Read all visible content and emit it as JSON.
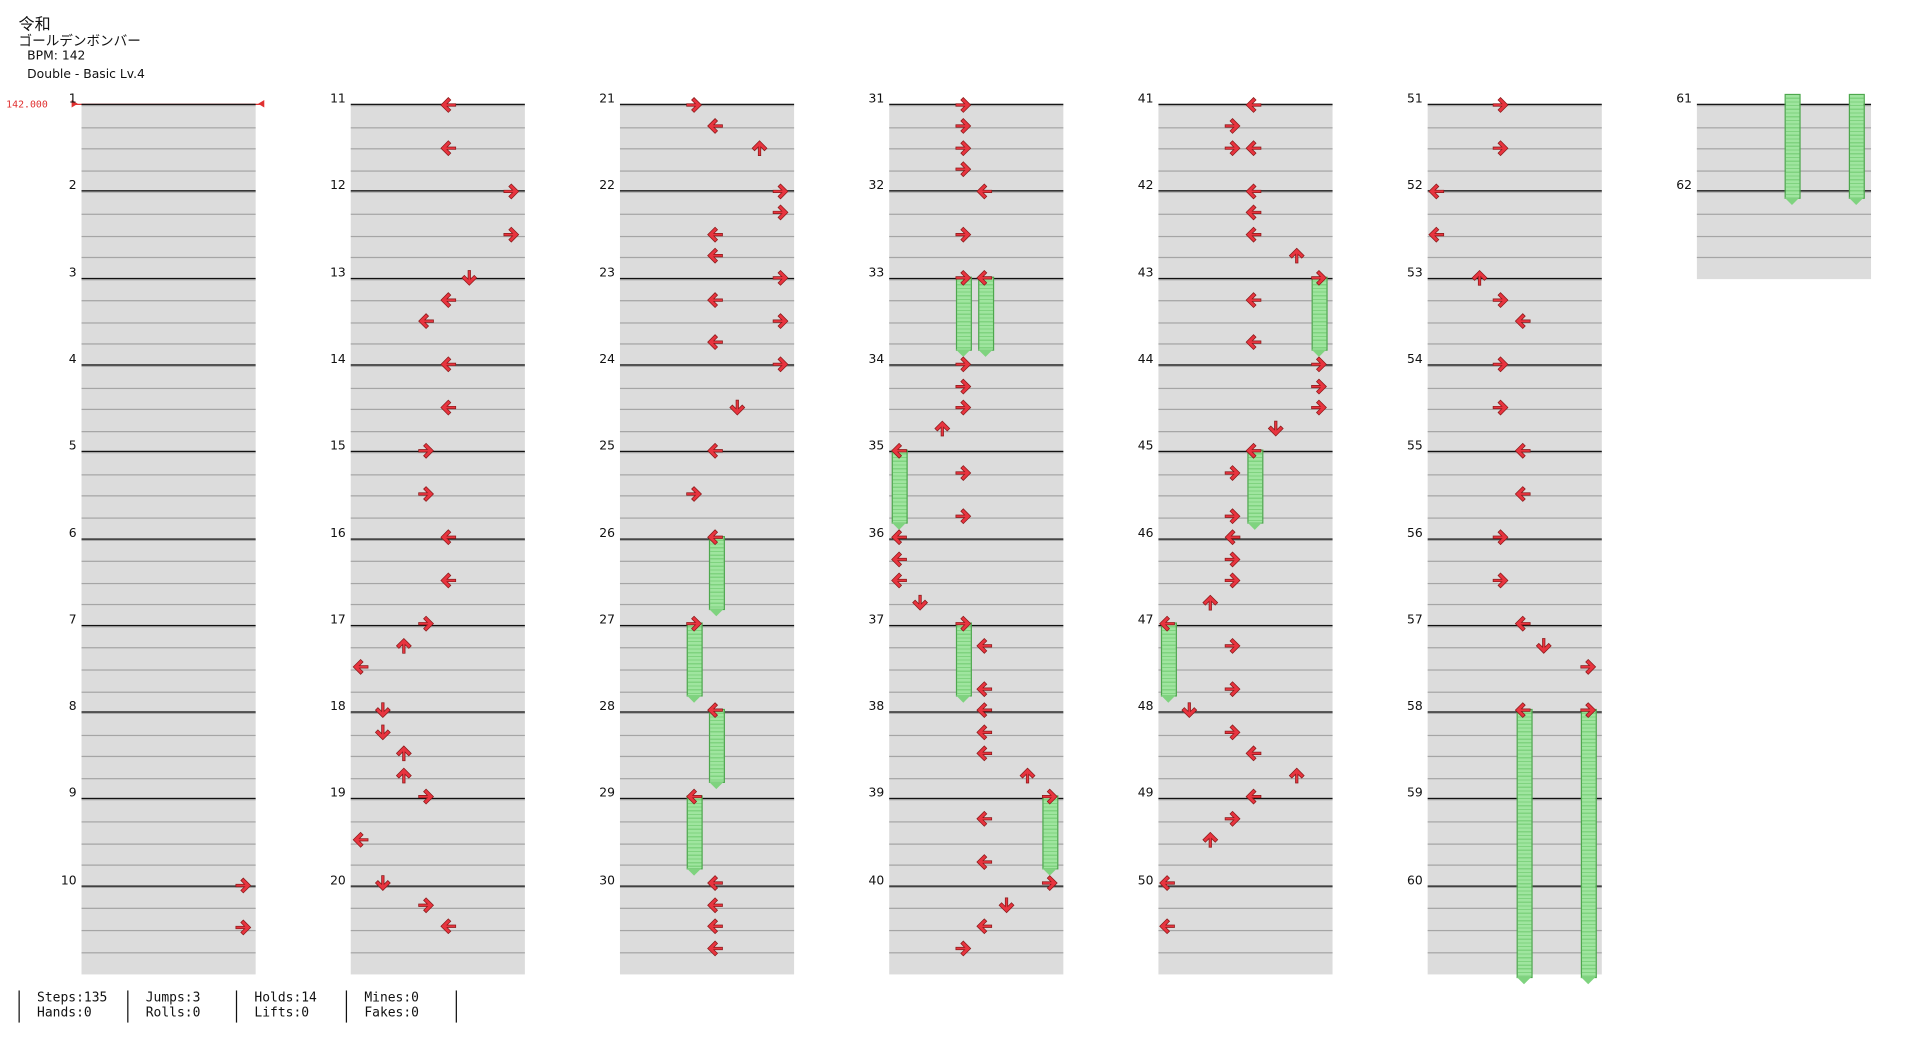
{
  "song": {
    "name": "令和",
    "title": "ゴールデンボンバー",
    "bpm_label": "BPM: 142",
    "chart_label": "Double - Basic  Lv.4"
  },
  "bpm_marker": "142.000",
  "measures": [
    "1",
    "2",
    "3",
    "4",
    "5",
    "6",
    "7",
    "8",
    "9",
    "10",
    "11",
    "12",
    "13",
    "14",
    "15",
    "16",
    "17",
    "18",
    "19",
    "20",
    "21",
    "22",
    "23",
    "24",
    "25",
    "26",
    "27",
    "28",
    "29",
    "30",
    "31",
    "32",
    "33",
    "34",
    "35",
    "36",
    "37",
    "38",
    "39",
    "40",
    "41",
    "42",
    "43",
    "44",
    "45",
    "46",
    "47",
    "48",
    "49",
    "50",
    "51",
    "52",
    "53",
    "54",
    "55",
    "56",
    "57",
    "58",
    "59",
    "60",
    "61",
    "62"
  ],
  "stats": {
    "steps": "Steps:135",
    "hands": "Hands:0",
    "jumps": "Jumps:3",
    "rolls": "Rolls:0",
    "holds": "Holds:14",
    "lifts": "Lifts:0",
    "mines": "Mines:0",
    "fakes": "Fakes:0"
  },
  "colors": {
    "arrow": "#e8343f",
    "arrow_outline": "#8a1a1a",
    "hold": "#9fe59f",
    "bpm": "#e03030",
    "band": "#dcdcdc"
  }
}
